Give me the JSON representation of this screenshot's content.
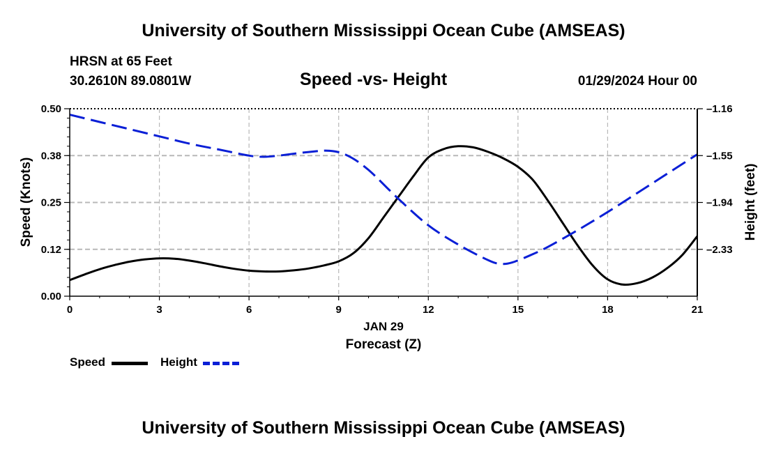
{
  "header": {
    "title": "University of Southern Mississippi Ocean Cube (AMSEAS)",
    "station_name": "HRSN at 65 Feet",
    "coordinates": "30.2610N  89.0801W",
    "chart_title": "Speed -vs- Height",
    "datetime": "01/29/2024 Hour 00"
  },
  "footer": {
    "title": "University of Southern Mississippi Ocean Cube (AMSEAS)"
  },
  "chart_data": {
    "type": "line",
    "title": "Speed -vs- Height",
    "xlabel": "Forecast (Z)",
    "xsublabel": "JAN 29",
    "ylabel_left": "Speed (Knots)",
    "ylabel_right": "Height (feet)",
    "xlim": [
      0,
      21
    ],
    "x_ticks": [
      0,
      3,
      6,
      9,
      12,
      15,
      18,
      21
    ],
    "x_tick_labels": [
      "0",
      "3",
      "6",
      "9",
      "12",
      "15",
      "18",
      "21"
    ],
    "ylim_left": [
      0,
      0.5
    ],
    "y_left_ticks": [
      0,
      0.125,
      0.25,
      0.375,
      0.5
    ],
    "y_left_tick_labels": [
      "0.00",
      "0.12",
      "0.25",
      "0.38",
      "0.50"
    ],
    "ylim_right": [
      -2.72,
      -1.16
    ],
    "y_right_ticks": [
      -1.16,
      -1.55,
      -1.94,
      -2.33
    ],
    "y_right_tick_labels": [
      "-1.16",
      "-1.55",
      "-1.94",
      "-2.33"
    ],
    "grid": true,
    "series": [
      {
        "name": "Speed",
        "axis": "left",
        "color": "#000000",
        "style": "solid",
        "x": [
          0,
          0.5,
          1,
          1.5,
          2,
          2.5,
          3,
          3.5,
          4,
          4.5,
          5,
          5.5,
          6,
          6.5,
          7,
          7.5,
          8,
          8.5,
          9,
          9.5,
          10,
          10.5,
          11,
          11.5,
          12,
          12.5,
          13,
          13.5,
          14,
          14.5,
          15,
          15.5,
          16,
          16.5,
          17,
          17.5,
          18,
          18.5,
          19,
          19.5,
          20,
          20.5,
          21
        ],
        "values": [
          0.043,
          0.058,
          0.072,
          0.083,
          0.092,
          0.098,
          0.101,
          0.1,
          0.095,
          0.088,
          0.08,
          0.073,
          0.068,
          0.066,
          0.066,
          0.069,
          0.074,
          0.082,
          0.093,
          0.115,
          0.155,
          0.21,
          0.265,
          0.32,
          0.37,
          0.392,
          0.4,
          0.397,
          0.385,
          0.368,
          0.345,
          0.31,
          0.255,
          0.195,
          0.135,
          0.082,
          0.045,
          0.031,
          0.035,
          0.05,
          0.075,
          0.11,
          0.16
        ]
      },
      {
        "name": "Height",
        "axis": "right",
        "color": "#0a1fd6",
        "style": "dashed",
        "x": [
          0,
          1,
          2,
          3,
          4,
          5,
          6,
          6.5,
          7,
          8,
          8.7,
          9.3,
          10,
          11,
          12,
          13,
          14,
          14.4,
          14.8,
          15.5,
          16,
          17,
          18,
          19,
          20,
          21
        ],
        "values": [
          -1.21,
          -1.27,
          -1.33,
          -1.39,
          -1.45,
          -1.5,
          -1.55,
          -1.56,
          -1.55,
          -1.52,
          -1.51,
          -1.55,
          -1.67,
          -1.91,
          -2.13,
          -2.29,
          -2.42,
          -2.45,
          -2.44,
          -2.37,
          -2.31,
          -2.17,
          -2.02,
          -1.86,
          -1.7,
          -1.54
        ]
      }
    ]
  }
}
